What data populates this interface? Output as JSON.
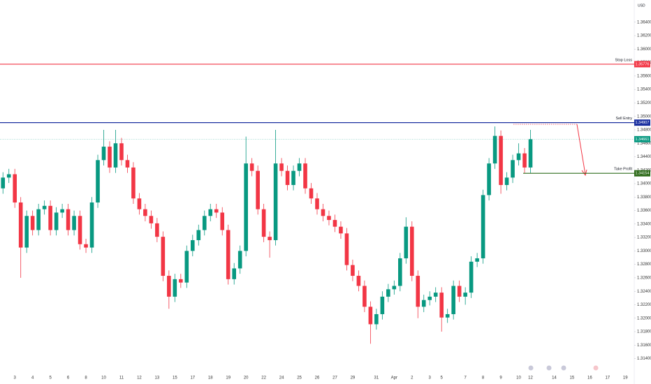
{
  "chart_data": {
    "type": "candlestick",
    "currency": "USD",
    "up_color": "#089981",
    "down_color": "#f23645",
    "categories": [
      null,
      null,
      "3",
      null,
      null,
      "4",
      null,
      null,
      "5",
      null,
      null,
      "6",
      null,
      null,
      "8",
      null,
      null,
      "10",
      null,
      null,
      "11",
      null,
      null,
      "12",
      null,
      null,
      "13",
      null,
      null,
      "15",
      null,
      null,
      "17",
      null,
      null,
      "18",
      null,
      null,
      "19",
      null,
      null,
      "20",
      null,
      null,
      "22",
      null,
      null,
      "24",
      null,
      null,
      "25",
      null,
      null,
      "26",
      null,
      null,
      "27",
      null,
      null,
      "29",
      null,
      null,
      null,
      "31",
      null,
      null,
      "Apr",
      null,
      null,
      "2",
      null,
      null,
      "3",
      null,
      "5",
      null,
      null,
      null,
      "7",
      null,
      null,
      "8",
      null,
      null,
      "9",
      null,
      null,
      "10",
      null,
      "12",
      null,
      null,
      null,
      "14",
      null,
      null,
      "15",
      null,
      null,
      "16",
      null,
      null,
      "17",
      null,
      null,
      "19",
      null
    ],
    "open": [
      1.3393,
      1.3409,
      1.3414,
      1.3372,
      1.3305,
      1.3352,
      1.3331,
      1.3362,
      1.3367,
      1.3331,
      1.3357,
      1.3362,
      1.3331,
      1.3352,
      1.331,
      1.3305,
      1.3372,
      1.3435,
      1.3455,
      1.3424,
      1.346,
      1.3435,
      1.3424,
      1.3378,
      1.3362,
      1.3352,
      1.3341,
      1.3321,
      1.3263,
      1.3232,
      1.3258,
      1.3253,
      1.33,
      1.3316,
      1.3331,
      1.3352,
      1.3362,
      1.3357,
      1.3331,
      1.3258,
      1.3274,
      1.33,
      1.343,
      1.3419,
      1.3362,
      1.3321,
      1.3316,
      1.343,
      1.3419,
      1.3398,
      1.3419,
      1.343,
      1.3393,
      1.3378,
      1.3362,
      1.3352,
      1.3346,
      1.3336,
      1.3326,
      1.3279,
      1.3263,
      1.3248,
      1.3217,
      1.3191,
      1.3206,
      1.3232,
      1.3243,
      1.3248,
      1.3289,
      1.3336,
      1.3263,
      1.3217,
      1.3227,
      1.3232,
      1.3238,
      1.3201,
      1.3206,
      1.3248,
      1.3232,
      1.3238,
      1.3284,
      1.3289,
      1.3383,
      1.343,
      1.3471,
      1.3398,
      1.3409,
      1.3435,
      1.3445,
      1.3424,
      null,
      null,
      null,
      null,
      null,
      null,
      null,
      null,
      null,
      null,
      null,
      null,
      null,
      null,
      null,
      null,
      null
    ],
    "high": [
      1.3417,
      1.3422,
      1.3422,
      1.338,
      1.336,
      1.336,
      1.337,
      1.3375,
      1.3375,
      1.3365,
      1.337,
      1.337,
      1.336,
      1.336,
      1.3318,
      1.338,
      1.3443,
      1.348,
      1.3463,
      1.348,
      1.3468,
      1.3443,
      1.3432,
      1.3386,
      1.337,
      1.336,
      1.3349,
      1.3329,
      1.3271,
      1.3266,
      1.3266,
      1.3308,
      1.3324,
      1.3339,
      1.336,
      1.337,
      1.337,
      1.3365,
      1.3339,
      1.3282,
      1.3308,
      1.347,
      1.3438,
      1.3427,
      1.337,
      1.3329,
      1.348,
      1.3438,
      1.3427,
      1.3427,
      1.3438,
      1.3438,
      1.3401,
      1.3386,
      1.337,
      1.336,
      1.3354,
      1.3344,
      1.3334,
      1.3287,
      1.3271,
      1.3256,
      1.3225,
      1.3214,
      1.324,
      1.3251,
      1.3256,
      1.3297,
      1.335,
      1.3344,
      1.3271,
      1.3235,
      1.324,
      1.3246,
      1.3246,
      1.3214,
      1.3256,
      1.3256,
      1.3246,
      1.3292,
      1.3297,
      1.3391,
      1.3438,
      1.3485,
      1.3479,
      1.3417,
      1.3443,
      1.346,
      1.3453,
      1.348,
      null,
      null,
      null,
      null,
      null,
      null,
      null,
      null,
      null,
      null,
      null,
      null,
      null,
      null,
      null,
      null,
      null
    ],
    "low": [
      1.3385,
      1.3401,
      1.3364,
      1.326,
      1.3297,
      1.3323,
      1.3323,
      1.3354,
      1.3323,
      1.3323,
      1.3349,
      1.3323,
      1.3323,
      1.3302,
      1.3297,
      1.3297,
      1.3364,
      1.3427,
      1.3416,
      1.3416,
      1.3427,
      1.3416,
      1.337,
      1.3354,
      1.3344,
      1.3333,
      1.3313,
      1.3255,
      1.3214,
      1.3224,
      1.3245,
      1.3245,
      1.3292,
      1.3308,
      1.3323,
      1.3344,
      1.3349,
      1.3323,
      1.325,
      1.325,
      1.3266,
      1.3292,
      1.3411,
      1.3354,
      1.3313,
      1.329,
      1.3308,
      1.3411,
      1.339,
      1.339,
      1.3411,
      1.3385,
      1.337,
      1.3354,
      1.3344,
      1.3338,
      1.3328,
      1.3318,
      1.3271,
      1.3255,
      1.324,
      1.3209,
      1.3162,
      1.3183,
      1.3198,
      1.3224,
      1.3235,
      1.324,
      1.3281,
      1.3255,
      1.32,
      1.3209,
      1.3219,
      1.3224,
      1.318,
      1.3193,
      1.3198,
      1.3224,
      1.322,
      1.323,
      1.3276,
      1.3281,
      1.3375,
      1.3422,
      1.3385,
      1.339,
      1.3401,
      1.3427,
      1.3416,
      1.3416,
      null,
      null,
      null,
      null,
      null,
      null,
      null,
      null,
      null,
      null,
      null,
      null,
      null,
      null,
      null,
      null,
      null
    ],
    "close": [
      1.3409,
      1.3414,
      1.3372,
      1.3305,
      1.3352,
      1.3331,
      1.3362,
      1.3367,
      1.3331,
      1.3357,
      1.3362,
      1.3331,
      1.3352,
      1.331,
      1.3305,
      1.3372,
      1.3435,
      1.3455,
      1.3424,
      1.346,
      1.3435,
      1.3424,
      1.3378,
      1.3362,
      1.3352,
      1.3341,
      1.3321,
      1.3263,
      1.3232,
      1.3258,
      1.3253,
      1.33,
      1.3316,
      1.3331,
      1.3352,
      1.3362,
      1.3357,
      1.3331,
      1.3258,
      1.3274,
      1.33,
      1.343,
      1.3419,
      1.3362,
      1.3321,
      1.3316,
      1.343,
      1.3419,
      1.3398,
      1.3419,
      1.343,
      1.3393,
      1.3378,
      1.3362,
      1.3352,
      1.3346,
      1.3336,
      1.3326,
      1.3279,
      1.3263,
      1.3248,
      1.3217,
      1.3191,
      1.3206,
      1.3232,
      1.3243,
      1.3248,
      1.3289,
      1.3336,
      1.3263,
      1.3217,
      1.3227,
      1.3232,
      1.3238,
      1.3201,
      1.3206,
      1.3248,
      1.3232,
      1.3238,
      1.3284,
      1.3289,
      1.3383,
      1.343,
      1.3471,
      1.3398,
      1.3409,
      1.3435,
      1.3445,
      1.3424,
      1.3466,
      null,
      null,
      null,
      null,
      null,
      null,
      null,
      null,
      null,
      null,
      null,
      null,
      null,
      null,
      null,
      null,
      null
    ],
    "ylim": [
      1.3125,
      1.3673
    ],
    "yticks": [
      {
        "value": 1.314,
        "label": "1.31400"
      },
      {
        "value": 1.316,
        "label": "1.31600"
      },
      {
        "value": 1.318,
        "label": "1.31800"
      },
      {
        "value": 1.32,
        "label": "1.32000"
      },
      {
        "value": 1.322,
        "label": "1.32200"
      },
      {
        "value": 1.324,
        "label": "1.32400"
      },
      {
        "value": 1.326,
        "label": "1.32600"
      },
      {
        "value": 1.328,
        "label": "1.32800"
      },
      {
        "value": 1.33,
        "label": "1.33000"
      },
      {
        "value": 1.332,
        "label": "1.33200"
      },
      {
        "value": 1.334,
        "label": "1.33400"
      },
      {
        "value": 1.336,
        "label": "1.33600"
      },
      {
        "value": 1.338,
        "label": "1.33800"
      },
      {
        "value": 1.34,
        "label": "1.34000"
      },
      {
        "value": 1.342,
        "label": "1.34200"
      },
      {
        "value": 1.344,
        "label": "1.34400"
      },
      {
        "value": 1.346,
        "label": "1.34600"
      },
      {
        "value": 1.348,
        "label": "1.34800"
      },
      {
        "value": 1.35,
        "label": "1.35000"
      },
      {
        "value": 1.352,
        "label": "1.35200"
      },
      {
        "value": 1.354,
        "label": "1.35400"
      },
      {
        "value": 1.356,
        "label": "1.35600"
      },
      {
        "value": 1.358,
        "label": "1.35800"
      },
      {
        "value": 1.36,
        "label": "1.36000"
      },
      {
        "value": 1.362,
        "label": "1.36200"
      },
      {
        "value": 1.364,
        "label": "1.36400"
      }
    ],
    "levels": [
      {
        "name": "Stop Loss",
        "value": 1.35776,
        "color": "#f23645"
      },
      {
        "name": "Sell Entry",
        "value": 1.34907,
        "color": "#1a2fa0"
      },
      {
        "name": "Take Profit",
        "value": 1.34154,
        "color": "#2e6b1a"
      }
    ],
    "last_price": 1.34661,
    "last_color": "#089981"
  }
}
